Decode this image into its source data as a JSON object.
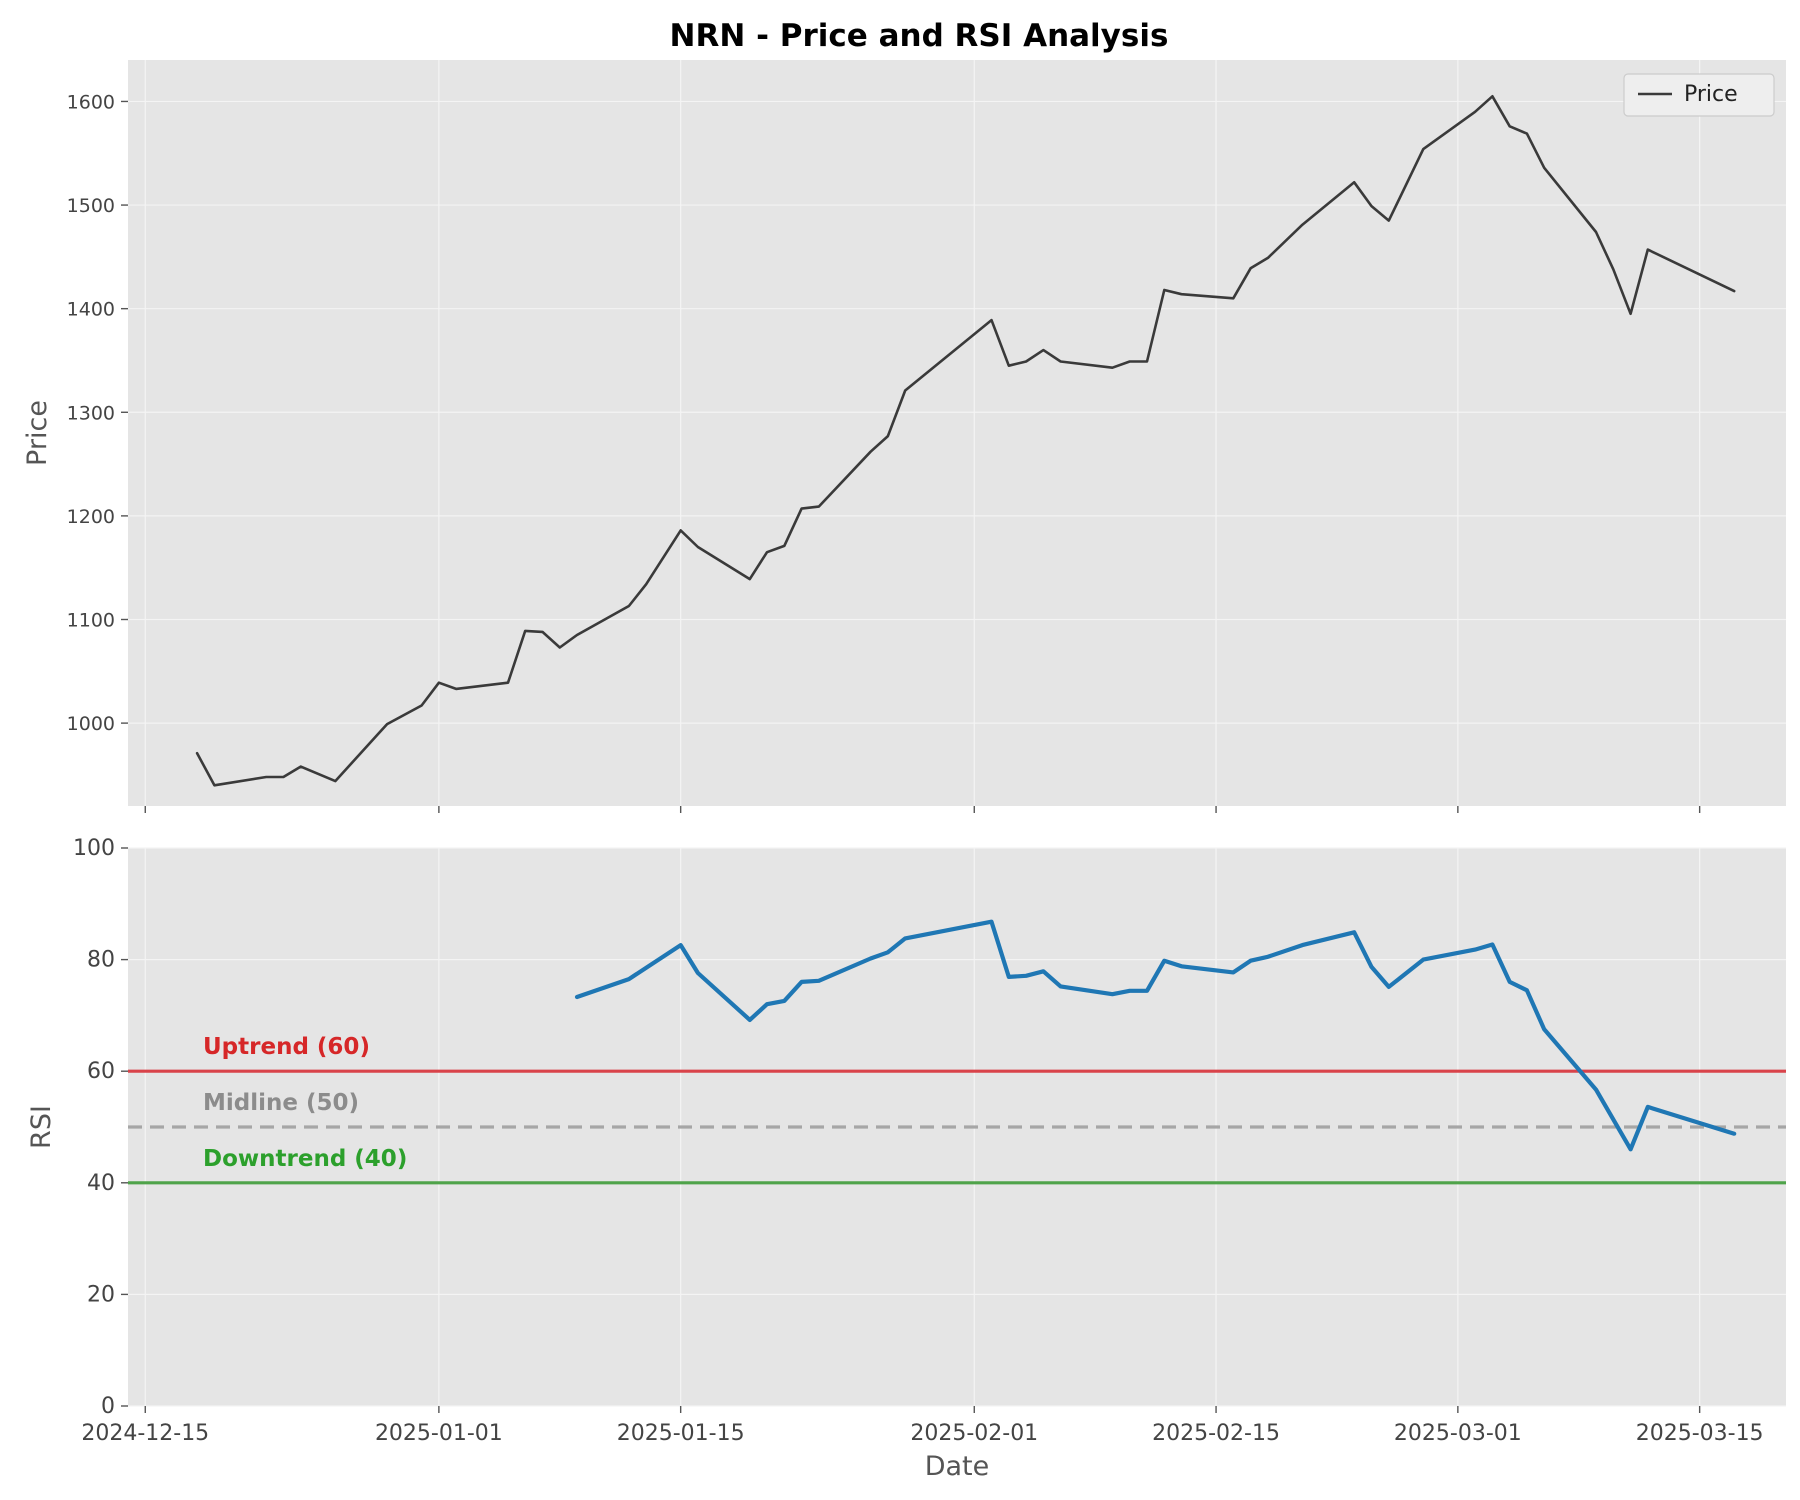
{
  "chart_data": {
    "title": "NRN - Price and RSI Analysis",
    "colors": {
      "price": "#3a3a3a",
      "rsi": "#1f77b4",
      "uptrend": "#d62728",
      "midline": "#8c8c8c",
      "downtrend": "#2ca02c",
      "panel_bg": "#e5e5e5",
      "grid": "#f4f4f4"
    },
    "x_ticks": [
      "2024-12-15",
      "2025-01-01",
      "2025-01-15",
      "2025-02-01",
      "2025-02-15",
      "2025-03-01",
      "2025-03-15"
    ],
    "x_range": [
      "2024-12-14",
      "2025-03-20"
    ],
    "xlabel": "Date",
    "panels": [
      {
        "type": "line",
        "ylabel": "Price",
        "ylim": [
          920,
          1640
        ],
        "yticks": [
          1000,
          1100,
          1200,
          1300,
          1400,
          1500,
          1600
        ],
        "grid": true,
        "legend": {
          "placement": "top-right",
          "entries": [
            "Price"
          ]
        },
        "series": [
          {
            "name": "Price",
            "dates": [
              "2024-12-18",
              "2024-12-19",
              "2024-12-22",
              "2024-12-23",
              "2024-12-24",
              "2024-12-26",
              "2024-12-29",
              "2024-12-31",
              "2025-01-01",
              "2025-01-02",
              "2025-01-05",
              "2025-01-06",
              "2025-01-07",
              "2025-01-08",
              "2025-01-09",
              "2025-01-12",
              "2025-01-13",
              "2025-01-15",
              "2025-01-16",
              "2025-01-19",
              "2025-01-20",
              "2025-01-21",
              "2025-01-22",
              "2025-01-23",
              "2025-01-26",
              "2025-01-27",
              "2025-01-28",
              "2025-02-02",
              "2025-02-03",
              "2025-02-04",
              "2025-02-05",
              "2025-02-06",
              "2025-02-09",
              "2025-02-10",
              "2025-02-11",
              "2025-02-12",
              "2025-02-13",
              "2025-02-16",
              "2025-02-17",
              "2025-02-18",
              "2025-02-20",
              "2025-02-23",
              "2025-02-24",
              "2025-02-25",
              "2025-02-27",
              "2025-03-02",
              "2025-03-03",
              "2025-03-04",
              "2025-03-05",
              "2025-03-06",
              "2025-03-09",
              "2025-03-10",
              "2025-03-11",
              "2025-03-12",
              "2025-03-17"
            ],
            "values": [
              971,
              940,
              948,
              948,
              958,
              944,
              999,
              1017,
              1039,
              1033,
              1039,
              1089,
              1088,
              1073,
              1085,
              1113,
              1134,
              1186,
              1170,
              1139,
              1165,
              1171,
              1207,
              1209,
              1262,
              1277,
              1321,
              1389,
              1345,
              1349,
              1360,
              1349,
              1343,
              1349,
              1349,
              1418,
              1414,
              1410,
              1439,
              1449,
              1481,
              1522,
              1499,
              1485,
              1554,
              1590,
              1605,
              1576,
              1569,
              1536,
              1474,
              1438,
              1395,
              1457,
              1417
            ]
          }
        ]
      },
      {
        "type": "line",
        "ylabel": "RSI",
        "ylim": [
          0,
          100
        ],
        "yticks": [
          0,
          20,
          40,
          60,
          80,
          100
        ],
        "grid": true,
        "thresholds": [
          {
            "label": "Uptrend (60)",
            "value": 60,
            "style": "solid"
          },
          {
            "label": "Midline (50)",
            "value": 50,
            "style": "dashed"
          },
          {
            "label": "Downtrend (40)",
            "value": 40,
            "style": "solid"
          }
        ],
        "series": [
          {
            "name": "RSI",
            "dates": [
              "2025-01-09",
              "2025-01-12",
              "2025-01-15",
              "2025-01-16",
              "2025-01-19",
              "2025-01-20",
              "2025-01-21",
              "2025-01-22",
              "2025-01-23",
              "2025-01-26",
              "2025-01-27",
              "2025-01-28",
              "2025-02-02",
              "2025-02-03",
              "2025-02-04",
              "2025-02-05",
              "2025-02-06",
              "2025-02-09",
              "2025-02-10",
              "2025-02-11",
              "2025-02-12",
              "2025-02-13",
              "2025-02-16",
              "2025-02-17",
              "2025-02-18",
              "2025-02-20",
              "2025-02-23",
              "2025-02-24",
              "2025-02-25",
              "2025-02-27",
              "2025-03-02",
              "2025-03-03",
              "2025-03-04",
              "2025-03-05",
              "2025-03-06",
              "2025-03-09",
              "2025-03-11",
              "2025-03-12",
              "2025-03-17"
            ],
            "values": [
              73.3,
              76.5,
              82.6,
              77.6,
              69.2,
              72.0,
              72.6,
              76.0,
              76.2,
              80.2,
              81.3,
              83.8,
              86.8,
              76.9,
              77.1,
              77.9,
              75.2,
              73.8,
              74.4,
              74.4,
              79.8,
              78.8,
              77.7,
              79.8,
              80.5,
              82.6,
              84.9,
              78.7,
              75.1,
              80.0,
              81.8,
              82.7,
              76.0,
              74.5,
              67.5,
              56.7,
              46.0,
              53.6,
              48.8
            ]
          }
        ]
      }
    ]
  }
}
